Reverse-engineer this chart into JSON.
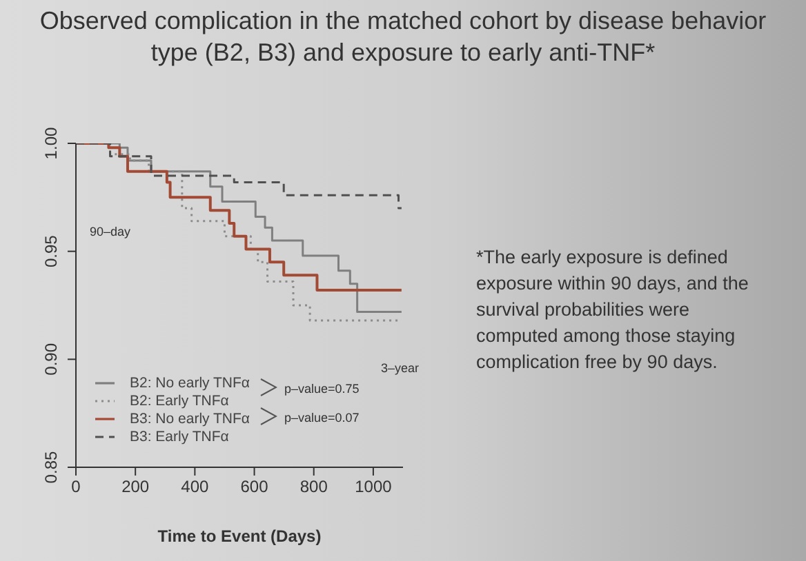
{
  "chart_data": {
    "type": "step",
    "title": "Observed complication in the matched cohort by disease behavior type (B2, B3) and exposure to early anti-TNF*",
    "xlabel": "Time to Event (Days)",
    "xlim": [
      0,
      1100
    ],
    "xticks": [
      0,
      200,
      400,
      600,
      800,
      1000
    ],
    "ylim": [
      0.85,
      1.0
    ],
    "yticks": [
      {
        "value": 0.85,
        "label": "0.85"
      },
      {
        "value": 0.9,
        "label": "0.90"
      },
      0.95,
      {
        "value": 1,
        "label": "1.00"
      }
    ],
    "grid": false,
    "legend": "bottom left",
    "marker": "none",
    "series": [
      {
        "name": "B2: No early TNFα",
        "color": "#7f7f7f",
        "line_style": "solid",
        "x": [
          0,
          147,
          174,
          253,
          452,
          492,
          604,
          636,
          660,
          763,
          883,
          922,
          946,
          1095
        ],
        "values": [
          1.0,
          0.998,
          0.992,
          0.987,
          0.98,
          0.973,
          0.966,
          0.961,
          0.955,
          0.948,
          0.941,
          0.935,
          0.922,
          0.922
        ]
      },
      {
        "name": "B2: Early TNFα",
        "color": "#8c8c8c",
        "line_style": "dotted",
        "x": [
          0,
          115,
          182,
          245,
          357,
          389,
          500,
          588,
          612,
          644,
          731,
          787,
          1095
        ],
        "values": [
          1.0,
          0.995,
          0.992,
          0.987,
          0.97,
          0.964,
          0.957,
          0.951,
          0.945,
          0.936,
          0.925,
          0.918,
          0.918
        ]
      },
      {
        "name": "B3: No early TNFα",
        "color": "#a34a35",
        "line_style": "solid",
        "x": [
          0,
          110,
          147,
          174,
          306,
          317,
          452,
          516,
          532,
          572,
          652,
          699,
          811,
          1095
        ],
        "values": [
          1.0,
          0.998,
          0.994,
          0.987,
          0.982,
          0.975,
          0.969,
          0.963,
          0.957,
          0.951,
          0.945,
          0.939,
          0.932,
          0.932
        ]
      },
      {
        "name": "B3: Early TNFα",
        "color": "#505050",
        "line_style": "dashed",
        "x": [
          0,
          115,
          253,
          532,
          699,
          1085,
          1095
        ],
        "values": [
          1.0,
          0.994,
          0.985,
          0.982,
          0.976,
          0.97,
          0.97
        ]
      }
    ],
    "annotations": [
      "90–day",
      "3–year",
      "p–value=0.75",
      "p–value=0.07",
      "*The early exposure is defined exposure within 90 days, and the survival probabilities were computed among those staying complication free by 90 days."
    ]
  }
}
